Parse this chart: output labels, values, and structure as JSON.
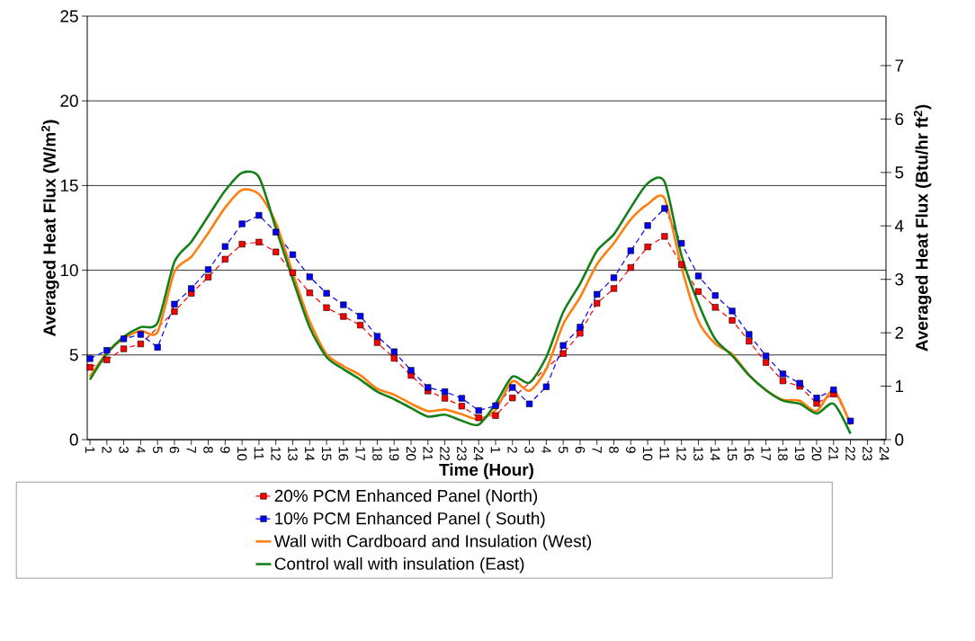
{
  "chart_data": {
    "type": "line",
    "xlabel": "Time (Hour)",
    "ylabel": "Averaged Heat Flux (W/m$^{2}$)",
    "y2label": "Averaged Heat Flux (Btu/hr ft$^{2}$)",
    "categories": [
      "1",
      "2",
      "3",
      "4",
      "5",
      "6",
      "7",
      "8",
      "9",
      "10",
      "11",
      "12",
      "13",
      "14",
      "15",
      "16",
      "17",
      "18",
      "19",
      "20",
      "21",
      "22",
      "23",
      "24",
      "1",
      "2",
      "3",
      "4",
      "5",
      "6",
      "7",
      "8",
      "9",
      "10",
      "11",
      "12",
      "13",
      "14",
      "15",
      "16",
      "17",
      "18",
      "19",
      "20",
      "21",
      "22",
      "23",
      "24"
    ],
    "ylim": [
      0,
      25
    ],
    "yticks": [
      0,
      5,
      10,
      15,
      20,
      25
    ],
    "y2lim": [
      0,
      7.925
    ],
    "y2ticks": [
      0,
      1,
      2,
      3,
      4,
      5,
      6,
      7
    ],
    "grid": "y",
    "legend": "bottom",
    "series": [
      {
        "name": "20% PCM Enhanced Panel (North)",
        "color": "#ff0000",
        "marker": "square",
        "line_style": "dashed",
        "values": [
          4.27,
          4.71,
          5.36,
          5.65,
          null,
          7.56,
          8.64,
          9.59,
          10.65,
          11.54,
          11.66,
          11.08,
          9.86,
          8.67,
          7.79,
          7.27,
          6.76,
          5.73,
          4.8,
          3.79,
          2.87,
          2.44,
          1.98,
          1.29,
          1.42,
          2.46,
          null,
          null,
          5.08,
          6.28,
          8.05,
          8.92,
          10.16,
          11.38,
          12.0,
          10.34,
          8.74,
          7.81,
          7.04,
          5.81,
          4.55,
          3.47,
          3.15,
          2.14,
          2.69,
          null,
          null,
          null
        ]
      },
      {
        "name": "10% PCM Enhanced Panel ( South)",
        "color": "#0000ff",
        "marker": "square",
        "line_style": "dashed",
        "values": [
          4.78,
          5.27,
          5.95,
          6.21,
          5.45,
          8.0,
          8.92,
          10.04,
          11.4,
          12.74,
          13.24,
          12.25,
          10.92,
          9.61,
          8.64,
          7.96,
          7.29,
          6.1,
          5.19,
          4.09,
          3.08,
          2.83,
          2.44,
          1.72,
          2.0,
          3.08,
          2.11,
          3.12,
          5.56,
          6.64,
          8.58,
          9.56,
          11.15,
          12.64,
          13.65,
          11.59,
          9.66,
          8.51,
          7.59,
          6.21,
          4.94,
          3.88,
          3.33,
          2.46,
          2.94,
          1.1,
          null,
          null
        ]
      },
      {
        "name": "Wall with Cardboard and Insulation (West)",
        "color": "#ff7f0e",
        "marker": "none",
        "line_style": "solid",
        "values": [
          3.72,
          5.13,
          5.96,
          6.42,
          6.35,
          9.9,
          10.8,
          12.2,
          13.7,
          14.74,
          14.5,
          12.8,
          9.82,
          6.99,
          5.04,
          4.34,
          3.8,
          3.0,
          2.65,
          2.12,
          1.68,
          1.77,
          1.5,
          1.19,
          1.75,
          3.45,
          2.88,
          4.16,
          6.81,
          8.4,
          10.35,
          11.6,
          13.0,
          13.9,
          14.25,
          10.18,
          6.99,
          5.66,
          5.04,
          3.8,
          2.92,
          2.35,
          2.3,
          1.68,
          2.92,
          0.88,
          null,
          null
        ]
      },
      {
        "name": "Control wall with insulation (East)",
        "color": "#15801a",
        "marker": "none",
        "line_style": "solid",
        "values": [
          3.54,
          5.08,
          6.07,
          6.64,
          6.9,
          10.5,
          11.68,
          13.2,
          14.7,
          15.75,
          15.5,
          12.48,
          9.47,
          6.64,
          4.87,
          4.16,
          3.54,
          2.83,
          2.39,
          1.86,
          1.36,
          1.47,
          1.12,
          0.88,
          2.12,
          3.72,
          3.36,
          4.87,
          7.52,
          9.2,
          11.15,
          12.12,
          13.7,
          15.13,
          15.22,
          10.88,
          8.05,
          5.93,
          4.96,
          3.8,
          2.92,
          2.3,
          2.12,
          1.54,
          2.12,
          0.35,
          null,
          null
        ]
      }
    ]
  }
}
